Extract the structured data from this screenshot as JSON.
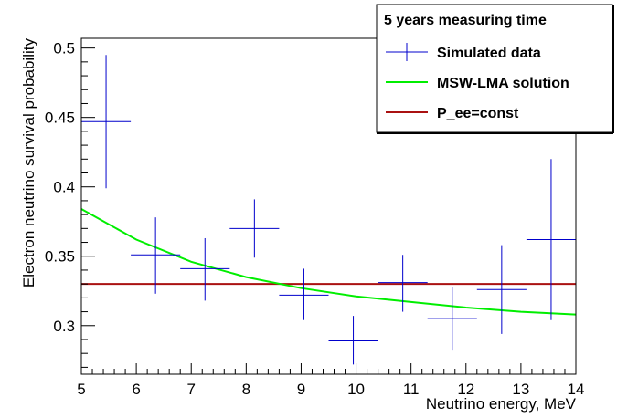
{
  "chart_data": {
    "type": "scatter",
    "title": "",
    "xlabel": "Neutrino energy, MeV",
    "ylabel": "Electron neutrino survival probability",
    "xlim": [
      5,
      14
    ],
    "ylim": [
      0.265,
      0.507
    ],
    "x_ticks": [
      "5",
      "6",
      "7",
      "8",
      "9",
      "10",
      "11",
      "12",
      "13",
      "14"
    ],
    "y_ticks": [
      "0.3",
      "0.35",
      "0.4",
      "0.45",
      "0.5"
    ],
    "grid": false,
    "legend": {
      "title": "5 years measuring time",
      "placement": "top-right",
      "entries": [
        "Simulated data",
        "MSW-LMA solution",
        "P_ee=const"
      ]
    },
    "series": [
      {
        "name": "Simulated data",
        "color": "#0000cc",
        "points": [
          {
            "x": 5.45,
            "xerr": 0.45,
            "y": 0.447,
            "ylow": 0.399,
            "yhigh": 0.495
          },
          {
            "x": 6.35,
            "xerr": 0.45,
            "y": 0.351,
            "ylow": 0.323,
            "yhigh": 0.378
          },
          {
            "x": 7.25,
            "xerr": 0.45,
            "y": 0.341,
            "ylow": 0.318,
            "yhigh": 0.363
          },
          {
            "x": 8.15,
            "xerr": 0.45,
            "y": 0.37,
            "ylow": 0.349,
            "yhigh": 0.391
          },
          {
            "x": 9.05,
            "xerr": 0.45,
            "y": 0.322,
            "ylow": 0.304,
            "yhigh": 0.341
          },
          {
            "x": 9.95,
            "xerr": 0.45,
            "y": 0.289,
            "ylow": 0.272,
            "yhigh": 0.307
          },
          {
            "x": 10.85,
            "xerr": 0.45,
            "y": 0.331,
            "ylow": 0.31,
            "yhigh": 0.351
          },
          {
            "x": 11.75,
            "xerr": 0.45,
            "y": 0.305,
            "ylow": 0.282,
            "yhigh": 0.328
          },
          {
            "x": 12.65,
            "xerr": 0.45,
            "y": 0.326,
            "ylow": 0.294,
            "yhigh": 0.358
          },
          {
            "x": 13.55,
            "xerr": 0.45,
            "y": 0.362,
            "ylow": 0.304,
            "yhigh": 0.42
          }
        ]
      },
      {
        "name": "MSW-LMA solution",
        "color": "#00ee00",
        "x": [
          5,
          6,
          7,
          8,
          9,
          10,
          11,
          12,
          13,
          14
        ],
        "y": [
          0.384,
          0.362,
          0.346,
          0.335,
          0.327,
          0.321,
          0.317,
          0.313,
          0.31,
          0.308
        ]
      },
      {
        "name": "P_ee=const",
        "color": "#aa1111",
        "x": [
          5,
          14
        ],
        "y": [
          0.33,
          0.33
        ]
      }
    ]
  }
}
